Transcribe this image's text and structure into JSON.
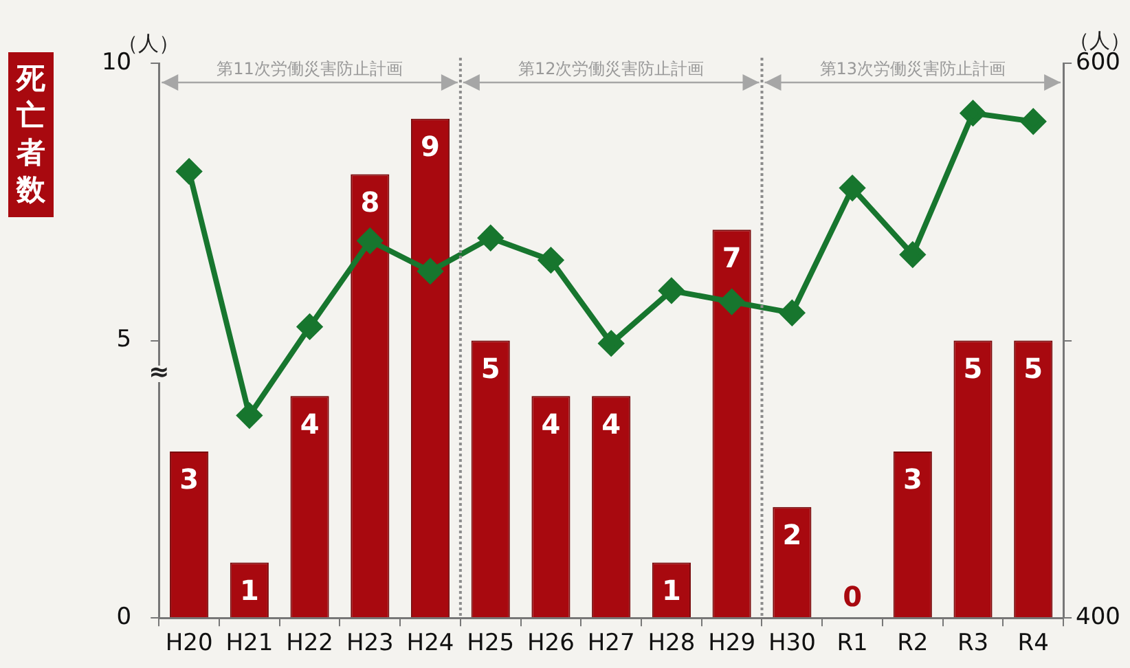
{
  "chart_data": {
    "type": "bar",
    "ylabel": "死亡者数",
    "y2label": "（人）",
    "annotations": [
      "（人）",
      "≈",
      "第11次労働災害防止計画",
      "第12次労働災害防止計画",
      "第13次労働災害防止計画"
    ],
    "categories": [
      "H20",
      "H21",
      "H22",
      "H23",
      "H24",
      "H25",
      "H26",
      "H27",
      "H28",
      "H29",
      "H30",
      "R1",
      "R2",
      "R3",
      "R4"
    ],
    "series": [
      {
        "color": "#a8090f",
        "values": [
          3,
          1,
          4,
          8,
          9,
          5,
          4,
          4,
          1,
          7,
          2,
          0,
          3,
          5,
          5
        ],
        "value_labels": [
          "3",
          "1",
          "4",
          "8",
          "9",
          "5",
          "4",
          "4",
          "1",
          "7",
          "2",
          "0",
          "3",
          "5",
          "5"
        ]
      },
      {
        "type": "line",
        "axis": "y2",
        "color": "#17762e",
        "marker": "diamond",
        "line_style": "solid",
        "values": [
          561,
          473,
          505,
          536,
          525,
          537,
          529,
          499,
          518,
          514,
          510,
          555,
          531,
          582,
          579
        ]
      }
    ],
    "ylim": [
      0,
      10
    ],
    "yticks": [
      0,
      5,
      10
    ],
    "y2lim": [
      400,
      600
    ],
    "y2ticks": [
      400,
      {
        "value": 500,
        "label": null
      },
      600
    ],
    "grid": false,
    "legend": false
  }
}
